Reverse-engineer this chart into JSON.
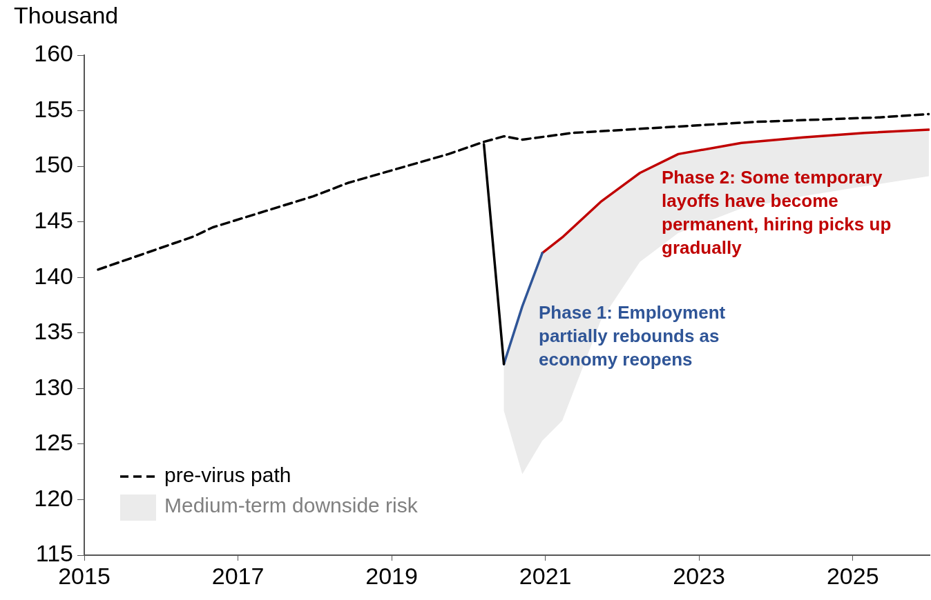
{
  "chart_data": {
    "type": "line",
    "ylabel": "Thousand",
    "xlim": [
      2015,
      2026
    ],
    "xticks": [
      2015,
      2017,
      2019,
      2021,
      2023,
      2025
    ],
    "ylim": [
      115,
      160
    ],
    "yticks": [
      115,
      120,
      125,
      130,
      135,
      140,
      145,
      150,
      155,
      160
    ],
    "grid": false,
    "legend": "bottom left",
    "marker": "none",
    "series": [
      {
        "name": "pre-virus path",
        "color": "#000000",
        "line_style": "dashed",
        "x": [
          2015.18,
          2016.43,
          2016.67,
          2017.98,
          2018.43,
          2019.74,
          2020.2,
          2020.46,
          2020.7,
          2021.35,
          2022.54,
          2023.74,
          2025.35,
          2025.99
        ],
        "values": [
          140.7,
          143.7,
          144.5,
          147.3,
          148.5,
          151.1,
          152.2,
          152.7,
          152.4,
          153.0,
          153.5,
          154.0,
          154.4,
          154.7
        ]
      },
      {
        "name": "Medium-term downside risk",
        "type": "area",
        "color": "#ebebeb",
        "x": [
          2020.46,
          2020.7,
          2020.96,
          2021.22,
          2021.72,
          2022.23,
          2022.73,
          2023.55,
          2024.35,
          2025.15,
          2025.99
        ],
        "values": [
          null,
          null,
          null,
          null,
          null,
          null,
          null,
          null,
          null,
          null,
          null
        ],
        "upper": [
          132.2,
          137.4,
          142.2,
          143.6,
          146.8,
          149.4,
          151.1,
          152.1,
          152.6,
          153.0,
          153.3
        ],
        "lower": [
          128.0,
          122.3,
          125.3,
          127.1,
          136.1,
          141.4,
          144.0,
          146.2,
          147.3,
          148.2,
          149.1
        ]
      },
      {
        "color": "#000000",
        "x": [
          2020.2,
          2020.46
        ],
        "values": [
          152.0,
          132.2
        ]
      },
      {
        "color": "#2f5597",
        "x": [
          2020.46,
          2020.7,
          2020.96
        ],
        "values": [
          132.2,
          137.4,
          142.2
        ]
      },
      {
        "color": "#c00000",
        "x": [
          2020.96,
          2021.22,
          2021.72,
          2022.23,
          2022.73,
          2023.55,
          2024.35,
          2025.15,
          2025.99
        ],
        "values": [
          142.2,
          143.6,
          146.8,
          149.4,
          151.1,
          152.1,
          152.6,
          153.0,
          153.3
        ]
      }
    ],
    "annotations": [
      "Phase 1: Employment partially rebounds as economy reopens",
      "Phase 2: Some temporary layoffs have become permanent, hiring picks up gradually"
    ]
  }
}
